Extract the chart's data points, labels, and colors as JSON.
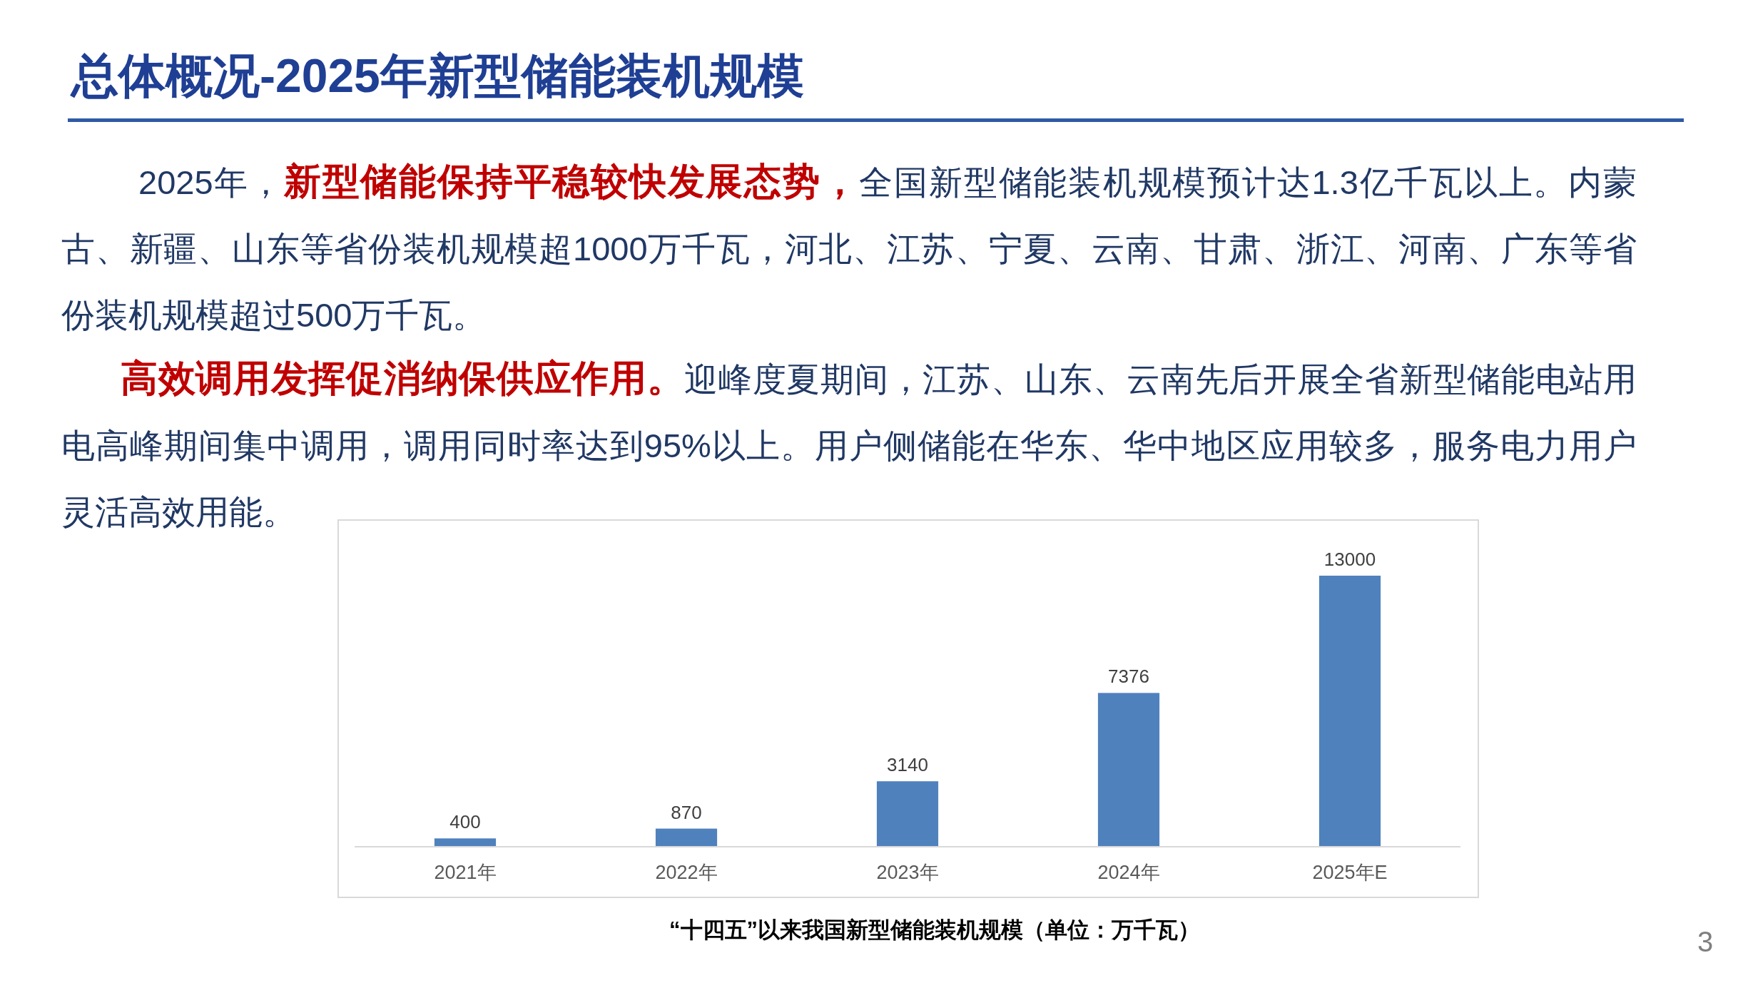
{
  "chart_data": {
    "type": "bar",
    "title": "总体概况-2025年新型储能装机规模",
    "categories": [
      "2021年",
      "2022年",
      "2023年",
      "2024年",
      "2025年E"
    ],
    "values": [
      400,
      870,
      3140,
      7376,
      13000
    ],
    "color": "#4f81bd",
    "data_labels": true,
    "annotations": [
      "2025年，**新型储能保持平稳较快发展态势，**全国新型储能装机规模预计达1.3亿千瓦以上。内蒙古、新疆、山东等省份装机规模超1000万千瓦，河北、江苏、宁夏、云南、甘肃、浙江、河南、广东等省份装机规模超过500万千瓦。",
      "**高效调用发挥促消纳保供应作用。**迎峰度夏期间，江苏、山东、云南先后开展全省新型储能电站用电高峰期间集中调用，调用同时率达到95%以上。用户侧储能在华东、华中地区应用较多，服务电力用户灵活高效用能。",
      "“十四五”以来我国新型储能装机规模（单位：万千瓦）",
      "3"
    ]
  }
}
